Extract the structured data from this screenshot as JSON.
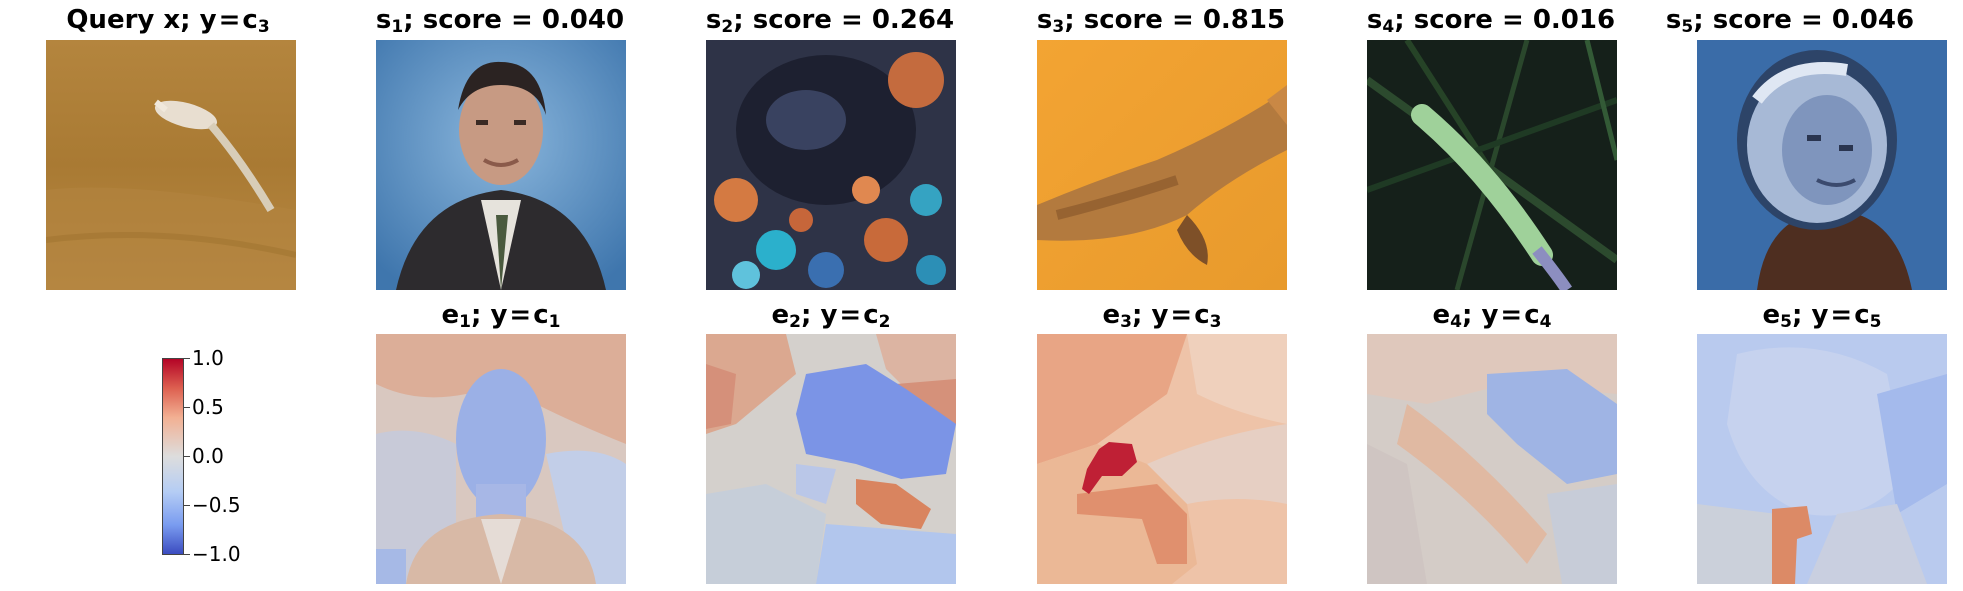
{
  "query": {
    "prefix": "Query x;",
    "label_var": "y",
    "eq": "=",
    "class_letter": "c",
    "class_index": "3"
  },
  "similar": [
    {
      "letter": "s",
      "index": "1",
      "sep": ";",
      "score_text": "score = 0.040",
      "score": 0.04
    },
    {
      "letter": "s",
      "index": "2",
      "sep": ";",
      "score_text": "score = 0.264",
      "score": 0.264
    },
    {
      "letter": "s",
      "index": "3",
      "sep": ";",
      "score_text": "score = 0.815",
      "score": 0.815
    },
    {
      "letter": "s",
      "index": "4",
      "sep": ";",
      "score_text": "score = 0.016",
      "score": 0.016
    },
    {
      "letter": "s",
      "index": "5",
      "sep": ";",
      "score_text": "score = 0.046",
      "score": 0.046
    }
  ],
  "explanations": [
    {
      "letter": "e",
      "index": "1",
      "sep": ";",
      "label_var": "y",
      "eq": "=",
      "class_letter": "c",
      "class_index": "1"
    },
    {
      "letter": "e",
      "index": "2",
      "sep": ";",
      "label_var": "y",
      "eq": "=",
      "class_letter": "c",
      "class_index": "2"
    },
    {
      "letter": "e",
      "index": "3",
      "sep": ";",
      "label_var": "y",
      "eq": "=",
      "class_letter": "c",
      "class_index": "3"
    },
    {
      "letter": "e",
      "index": "4",
      "sep": ";",
      "label_var": "y",
      "eq": "=",
      "class_letter": "c",
      "class_index": "4"
    },
    {
      "letter": "e",
      "index": "5",
      "sep": ";",
      "label_var": "y",
      "eq": "=",
      "class_letter": "c",
      "class_index": "5"
    }
  ],
  "colorbar": {
    "colormap": "coolwarm",
    "ticks": [
      "1.0",
      "0.5",
      "0.0",
      "−0.5",
      "−1.0"
    ],
    "colors": {
      "max": "#b40426",
      "mid": "#dddddd",
      "min": "#3b4cc0"
    }
  }
}
